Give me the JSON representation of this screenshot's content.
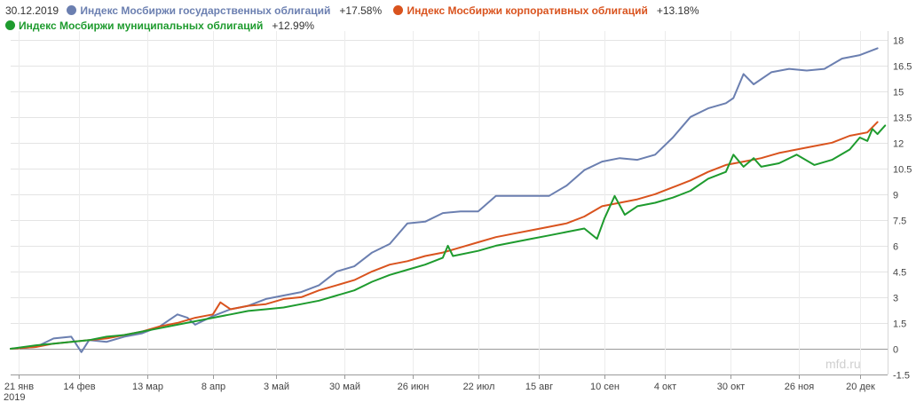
{
  "header": {
    "date": "30.12.2019"
  },
  "chart_data": {
    "type": "line",
    "ylim": [
      -1.5,
      18.5
    ],
    "yticks": [
      -1.5,
      0,
      1.5,
      3,
      4.5,
      6,
      7.5,
      9,
      10.5,
      12,
      13.5,
      15,
      16.5,
      18
    ],
    "ytick_labels": [
      "-1.5",
      "0",
      "1.5",
      "3",
      "4.5",
      "6",
      "7.5",
      "9",
      "10.5",
      "12",
      "13.5",
      "15",
      "16.5",
      "18"
    ],
    "xlim": [
      "2019-01-18",
      "2019-12-31"
    ],
    "xticks": [
      "2019-01-21",
      "2019-02-14",
      "2019-03-13",
      "2019-04-08",
      "2019-05-03",
      "2019-05-30",
      "2019-06-26",
      "2019-07-22",
      "2019-08-15",
      "2019-09-10",
      "2019-10-04",
      "2019-10-30",
      "2019-11-26",
      "2019-12-20"
    ],
    "xtick_labels": [
      "21 янв",
      "14 фев",
      "13 мар",
      "8 апр",
      "3 май",
      "30 май",
      "26 июн",
      "22 июл",
      "15 авг",
      "10 сен",
      "4 окт",
      "30 окт",
      "26 ноя",
      "20 дек"
    ],
    "x_year_label": "2019",
    "grid": true,
    "legend_position": "top-left",
    "series": [
      {
        "name": "Индекс Мосбиржи государственных облигаций",
        "change": "+17.58%",
        "color": "#6b7fb0",
        "points": [
          [
            "2019-01-18",
            0.0
          ],
          [
            "2019-01-28",
            0.1
          ],
          [
            "2019-02-04",
            0.6
          ],
          [
            "2019-02-11",
            0.7
          ],
          [
            "2019-02-15",
            -0.2
          ],
          [
            "2019-02-18",
            0.5
          ],
          [
            "2019-02-25",
            0.4
          ],
          [
            "2019-03-04",
            0.7
          ],
          [
            "2019-03-11",
            0.9
          ],
          [
            "2019-03-18",
            1.3
          ],
          [
            "2019-03-25",
            2.0
          ],
          [
            "2019-03-29",
            1.8
          ],
          [
            "2019-04-01",
            1.4
          ],
          [
            "2019-04-08",
            1.9
          ],
          [
            "2019-04-15",
            2.3
          ],
          [
            "2019-04-22",
            2.5
          ],
          [
            "2019-04-29",
            2.9
          ],
          [
            "2019-05-06",
            3.1
          ],
          [
            "2019-05-13",
            3.3
          ],
          [
            "2019-05-20",
            3.7
          ],
          [
            "2019-05-27",
            4.5
          ],
          [
            "2019-06-03",
            4.8
          ],
          [
            "2019-06-10",
            5.6
          ],
          [
            "2019-06-17",
            6.1
          ],
          [
            "2019-06-24",
            7.3
          ],
          [
            "2019-07-01",
            7.4
          ],
          [
            "2019-07-08",
            7.9
          ],
          [
            "2019-07-15",
            8.0
          ],
          [
            "2019-07-22",
            8.0
          ],
          [
            "2019-07-29",
            8.9
          ],
          [
            "2019-08-05",
            8.9
          ],
          [
            "2019-08-12",
            8.9
          ],
          [
            "2019-08-19",
            8.9
          ],
          [
            "2019-08-26",
            9.5
          ],
          [
            "2019-09-02",
            10.4
          ],
          [
            "2019-09-09",
            10.9
          ],
          [
            "2019-09-16",
            11.1
          ],
          [
            "2019-09-23",
            11.0
          ],
          [
            "2019-09-30",
            11.3
          ],
          [
            "2019-10-07",
            12.3
          ],
          [
            "2019-10-14",
            13.5
          ],
          [
            "2019-10-21",
            14.0
          ],
          [
            "2019-10-28",
            14.3
          ],
          [
            "2019-10-31",
            14.6
          ],
          [
            "2019-11-04",
            16.0
          ],
          [
            "2019-11-08",
            15.4
          ],
          [
            "2019-11-15",
            16.1
          ],
          [
            "2019-11-22",
            16.3
          ],
          [
            "2019-11-29",
            16.2
          ],
          [
            "2019-12-06",
            16.3
          ],
          [
            "2019-12-13",
            16.9
          ],
          [
            "2019-12-20",
            17.1
          ],
          [
            "2019-12-27",
            17.5
          ]
        ]
      },
      {
        "name": "Индекс Мосбиржи корпоративных облигаций",
        "change": "+13.18%",
        "color": "#d9531e",
        "points": [
          [
            "2019-01-18",
            0.0
          ],
          [
            "2019-01-28",
            0.1
          ],
          [
            "2019-02-04",
            0.3
          ],
          [
            "2019-02-11",
            0.4
          ],
          [
            "2019-02-18",
            0.5
          ],
          [
            "2019-02-25",
            0.6
          ],
          [
            "2019-03-04",
            0.8
          ],
          [
            "2019-03-11",
            1.0
          ],
          [
            "2019-03-18",
            1.3
          ],
          [
            "2019-03-25",
            1.5
          ],
          [
            "2019-04-01",
            1.8
          ],
          [
            "2019-04-08",
            2.0
          ],
          [
            "2019-04-11",
            2.7
          ],
          [
            "2019-04-15",
            2.3
          ],
          [
            "2019-04-22",
            2.5
          ],
          [
            "2019-04-29",
            2.6
          ],
          [
            "2019-05-06",
            2.9
          ],
          [
            "2019-05-13",
            3.0
          ],
          [
            "2019-05-20",
            3.4
          ],
          [
            "2019-05-27",
            3.7
          ],
          [
            "2019-06-03",
            4.0
          ],
          [
            "2019-06-10",
            4.5
          ],
          [
            "2019-06-17",
            4.9
          ],
          [
            "2019-06-24",
            5.1
          ],
          [
            "2019-07-01",
            5.4
          ],
          [
            "2019-07-08",
            5.6
          ],
          [
            "2019-07-15",
            5.9
          ],
          [
            "2019-07-22",
            6.2
          ],
          [
            "2019-07-29",
            6.5
          ],
          [
            "2019-08-05",
            6.7
          ],
          [
            "2019-08-12",
            6.9
          ],
          [
            "2019-08-19",
            7.1
          ],
          [
            "2019-08-26",
            7.3
          ],
          [
            "2019-09-02",
            7.7
          ],
          [
            "2019-09-09",
            8.3
          ],
          [
            "2019-09-16",
            8.5
          ],
          [
            "2019-09-23",
            8.7
          ],
          [
            "2019-09-30",
            9.0
          ],
          [
            "2019-10-07",
            9.4
          ],
          [
            "2019-10-14",
            9.8
          ],
          [
            "2019-10-21",
            10.3
          ],
          [
            "2019-10-28",
            10.7
          ],
          [
            "2019-11-04",
            10.9
          ],
          [
            "2019-11-11",
            11.1
          ],
          [
            "2019-11-18",
            11.4
          ],
          [
            "2019-11-25",
            11.6
          ],
          [
            "2019-12-02",
            11.8
          ],
          [
            "2019-12-09",
            12.0
          ],
          [
            "2019-12-16",
            12.4
          ],
          [
            "2019-12-23",
            12.6
          ],
          [
            "2019-12-27",
            13.2
          ]
        ]
      },
      {
        "name": "Индекс Мосбиржи муниципальных облигаций",
        "change": "+12.99%",
        "color": "#1e9b2e",
        "points": [
          [
            "2019-01-18",
            0.0
          ],
          [
            "2019-01-28",
            0.2
          ],
          [
            "2019-02-04",
            0.3
          ],
          [
            "2019-02-11",
            0.4
          ],
          [
            "2019-02-18",
            0.5
          ],
          [
            "2019-02-25",
            0.7
          ],
          [
            "2019-03-04",
            0.8
          ],
          [
            "2019-03-11",
            1.0
          ],
          [
            "2019-03-18",
            1.2
          ],
          [
            "2019-03-25",
            1.4
          ],
          [
            "2019-04-01",
            1.6
          ],
          [
            "2019-04-08",
            1.8
          ],
          [
            "2019-04-15",
            2.0
          ],
          [
            "2019-04-22",
            2.2
          ],
          [
            "2019-04-29",
            2.3
          ],
          [
            "2019-05-06",
            2.4
          ],
          [
            "2019-05-13",
            2.6
          ],
          [
            "2019-05-20",
            2.8
          ],
          [
            "2019-05-27",
            3.1
          ],
          [
            "2019-06-03",
            3.4
          ],
          [
            "2019-06-10",
            3.9
          ],
          [
            "2019-06-17",
            4.3
          ],
          [
            "2019-06-24",
            4.6
          ],
          [
            "2019-07-01",
            4.9
          ],
          [
            "2019-07-08",
            5.3
          ],
          [
            "2019-07-10",
            6.0
          ],
          [
            "2019-07-12",
            5.4
          ],
          [
            "2019-07-22",
            5.7
          ],
          [
            "2019-07-29",
            6.0
          ],
          [
            "2019-08-05",
            6.2
          ],
          [
            "2019-08-12",
            6.4
          ],
          [
            "2019-08-19",
            6.6
          ],
          [
            "2019-08-26",
            6.8
          ],
          [
            "2019-09-02",
            7.0
          ],
          [
            "2019-09-07",
            6.4
          ],
          [
            "2019-09-10",
            7.6
          ],
          [
            "2019-09-14",
            8.9
          ],
          [
            "2019-09-18",
            7.8
          ],
          [
            "2019-09-23",
            8.3
          ],
          [
            "2019-09-30",
            8.5
          ],
          [
            "2019-10-07",
            8.8
          ],
          [
            "2019-10-14",
            9.2
          ],
          [
            "2019-10-21",
            9.9
          ],
          [
            "2019-10-28",
            10.3
          ],
          [
            "2019-10-31",
            11.3
          ],
          [
            "2019-11-04",
            10.6
          ],
          [
            "2019-11-08",
            11.1
          ],
          [
            "2019-11-11",
            10.6
          ],
          [
            "2019-11-18",
            10.8
          ],
          [
            "2019-11-25",
            11.3
          ],
          [
            "2019-12-02",
            10.7
          ],
          [
            "2019-12-09",
            11.0
          ],
          [
            "2019-12-16",
            11.6
          ],
          [
            "2019-12-20",
            12.3
          ],
          [
            "2019-12-23",
            12.1
          ],
          [
            "2019-12-25",
            12.8
          ],
          [
            "2019-12-27",
            12.5
          ],
          [
            "2019-12-30",
            13.0
          ]
        ]
      }
    ]
  },
  "watermark": "mfd.ru"
}
